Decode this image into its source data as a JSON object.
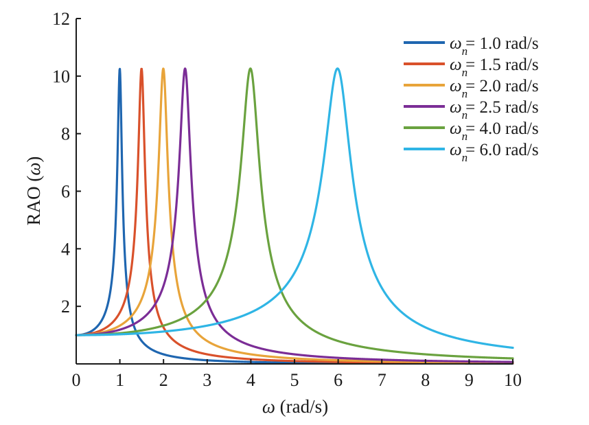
{
  "chart_data": {
    "type": "line",
    "title": "",
    "xlabel": {
      "symbol": "ω",
      "rest": " (rad/s)"
    },
    "ylabel": {
      "prefix": "RAO (",
      "symbol": "ω",
      "suffix": ")"
    },
    "xlim": [
      0,
      10
    ],
    "ylim": [
      0,
      12
    ],
    "x_ticks": [
      0,
      1,
      2,
      3,
      4,
      5,
      6,
      7,
      8,
      9,
      10
    ],
    "y_ticks": [
      2,
      4,
      6,
      8,
      10,
      12
    ],
    "grid": false,
    "legend_position": "top-right",
    "peak_rao": 10.25,
    "legend_symbol": "ω",
    "legend_subscript": "n",
    "series": [
      {
        "label_value": "= 1.0 rad/s",
        "omega_n": 1.0,
        "color": "#1f66b0"
      },
      {
        "label_value": "= 1.5 rad/s",
        "omega_n": 1.5,
        "color": "#d9512b"
      },
      {
        "label_value": "= 2.0 rad/s",
        "omega_n": 2.0,
        "color": "#e8a43a"
      },
      {
        "label_value": "= 2.5 rad/s",
        "omega_n": 2.5,
        "color": "#7b2d96"
      },
      {
        "label_value": "= 4.0 rad/s",
        "omega_n": 4.0,
        "color": "#6aa23f"
      },
      {
        "label_value": "= 6.0 rad/s",
        "omega_n": 6.0,
        "color": "#2fb5e5"
      }
    ]
  }
}
